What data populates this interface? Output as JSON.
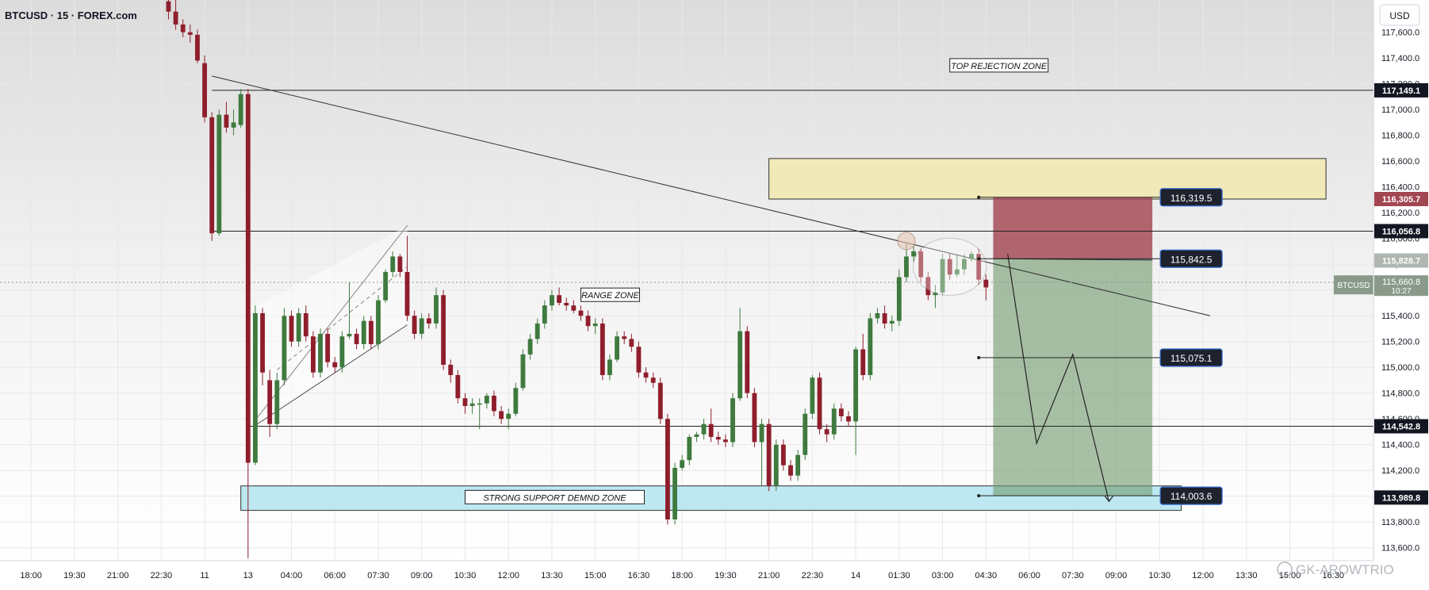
{
  "header": {
    "symbol_title": "BTCUSD · 15 · FOREX.com",
    "currency": "USD"
  },
  "colors": {
    "up": "#3f7a3f",
    "down": "#8f1e2c",
    "grid": "#e8e8e8",
    "loss_zone": "#a24652",
    "profit_zone": "#6f9a6c",
    "yellow_zone": "#f1e9b8",
    "blue_zone": "#bde8f1"
  },
  "annotations": {
    "top_rejection": "TOP REJECTION ZONE",
    "range_zone": "RANGE ZONE",
    "support_zone": "STRONG SUPPORT DEMND ZONE"
  },
  "price_tags": {
    "entry_sl": "116,319.5",
    "entry": "115,842.5",
    "tp1": "115,075.1",
    "tp2": "114,003.6"
  },
  "axis_labels": {
    "yellow_top": "116,305.7",
    "upper_line": "117,149.1",
    "mid_line": "116,056.8",
    "current_right": "115,828.7",
    "btcusd_label": "BTCUSD",
    "btcusd_price": "115,660.8",
    "btcusd_timer": "10:27",
    "lower_line": "114,542.8",
    "bottom_tag": "113,989.8"
  },
  "watermark": "GK-AROWTRIO",
  "chart_data": {
    "type": "candlestick",
    "title": "BTCUSD · 15 · FOREX.com",
    "ylim": [
      113500,
      117850
    ],
    "y_ticks": [
      113600,
      113800,
      114000,
      114200,
      114400,
      114600,
      114800,
      115000,
      115200,
      115400,
      115600,
      115800,
      116000,
      116200,
      116400,
      116600,
      116800,
      117000,
      117200,
      117400,
      117600
    ],
    "y_tick_labels": [
      "113,600.0",
      "113,800.0",
      "114,000.0",
      "114,200.0",
      "114,400.0",
      "114,600.0",
      "114,800.0",
      "115,000.0",
      "115,200.0",
      "115,400.0",
      "115,600.0",
      "115,800.0",
      "116,000.0",
      "116,200.0",
      "116,400.0",
      "116,600.0",
      "116,800.0",
      "117,000.0",
      "117,200.0",
      "117,400.0",
      "117,600.0"
    ],
    "x_index_range": [
      -12,
      119
    ],
    "x_ticks": [
      {
        "i": -11,
        "label": "18:00"
      },
      {
        "i": -5,
        "label": "19:30"
      },
      {
        "i": 1,
        "label": "21:00"
      },
      {
        "i": 7,
        "label": "22:30"
      },
      {
        "i": 13,
        "label": "11"
      },
      {
        "i": 19,
        "label": "13"
      },
      {
        "i": 25,
        "label": "04:00"
      },
      {
        "i": 31,
        "label": "06:00"
      },
      {
        "i": 37,
        "label": "07:30"
      },
      {
        "i": 43,
        "label": "09:00"
      },
      {
        "i": 49,
        "label": "10:30"
      },
      {
        "i": 55,
        "label": "12:00"
      },
      {
        "i": 61,
        "label": "13:30"
      },
      {
        "i": 67,
        "label": "15:00"
      },
      {
        "i": 73,
        "label": "16:30"
      },
      {
        "i": 79,
        "label": "18:00"
      },
      {
        "i": 85,
        "label": "19:30"
      },
      {
        "i": 91,
        "label": "21:00"
      },
      {
        "i": 97,
        "label": "22:30"
      },
      {
        "i": 103,
        "label": "14"
      },
      {
        "i": 109,
        "label": "01:30"
      },
      {
        "i": 115,
        "label": "03:00"
      },
      {
        "i": 121,
        "label": "04:30"
      },
      {
        "i": 127,
        "label": "06:00"
      },
      {
        "i": 133,
        "label": "07:30"
      },
      {
        "i": 139,
        "label": "09:00"
      },
      {
        "i": 145,
        "label": "10:30"
      },
      {
        "i": 151,
        "label": "12:00"
      },
      {
        "i": 157,
        "label": "13:30"
      },
      {
        "i": 163,
        "label": "15:00"
      },
      {
        "i": 169,
        "label": "16:30"
      }
    ],
    "candles": [
      {
        "i": 8,
        "o": 117840,
        "h": 117880,
        "l": 117700,
        "c": 117760
      },
      {
        "i": 9,
        "o": 117760,
        "h": 117860,
        "l": 117620,
        "c": 117660
      },
      {
        "i": 10,
        "o": 117660,
        "h": 117700,
        "l": 117560,
        "c": 117600
      },
      {
        "i": 11,
        "o": 117600,
        "h": 117660,
        "l": 117520,
        "c": 117580
      },
      {
        "i": 12,
        "o": 117580,
        "h": 117620,
        "l": 117360,
        "c": 117380
      },
      {
        "i": 13,
        "o": 117360,
        "h": 117420,
        "l": 116900,
        "c": 116940
      },
      {
        "i": 14,
        "o": 116940,
        "h": 116980,
        "l": 115980,
        "c": 116040
      },
      {
        "i": 15,
        "o": 116040,
        "h": 117000,
        "l": 116020,
        "c": 116960
      },
      {
        "i": 16,
        "o": 116960,
        "h": 117060,
        "l": 116820,
        "c": 116860
      },
      {
        "i": 17,
        "o": 116860,
        "h": 117000,
        "l": 116800,
        "c": 116900
      },
      {
        "i": 18,
        "o": 116880,
        "h": 117160,
        "l": 116860,
        "c": 117120
      },
      {
        "i": 19,
        "o": 117120,
        "h": 117160,
        "l": 113520,
        "c": 114260
      },
      {
        "i": 20,
        "o": 114260,
        "h": 115480,
        "l": 114240,
        "c": 115420
      },
      {
        "i": 21,
        "o": 115420,
        "h": 115460,
        "l": 114860,
        "c": 114960
      },
      {
        "i": 22,
        "o": 114900,
        "h": 114980,
        "l": 114460,
        "c": 114560
      },
      {
        "i": 23,
        "o": 114560,
        "h": 114960,
        "l": 114520,
        "c": 114900
      },
      {
        "i": 24,
        "o": 114900,
        "h": 115460,
        "l": 114860,
        "c": 115400
      },
      {
        "i": 25,
        "o": 115400,
        "h": 115440,
        "l": 115160,
        "c": 115200
      },
      {
        "i": 26,
        "o": 115200,
        "h": 115460,
        "l": 115160,
        "c": 115420
      },
      {
        "i": 27,
        "o": 115420,
        "h": 115480,
        "l": 115200,
        "c": 115240
      },
      {
        "i": 28,
        "o": 115240,
        "h": 115280,
        "l": 114920,
        "c": 114960
      },
      {
        "i": 29,
        "o": 114960,
        "h": 115300,
        "l": 114920,
        "c": 115260
      },
      {
        "i": 30,
        "o": 115260,
        "h": 115300,
        "l": 115000,
        "c": 115040
      },
      {
        "i": 31,
        "o": 115040,
        "h": 115080,
        "l": 114960,
        "c": 115000
      },
      {
        "i": 32,
        "o": 115000,
        "h": 115280,
        "l": 114960,
        "c": 115240
      },
      {
        "i": 33,
        "o": 115240,
        "h": 115660,
        "l": 115220,
        "c": 115260
      },
      {
        "i": 34,
        "o": 115260,
        "h": 115300,
        "l": 115140,
        "c": 115180
      },
      {
        "i": 35,
        "o": 115180,
        "h": 115400,
        "l": 115140,
        "c": 115360
      },
      {
        "i": 36,
        "o": 115360,
        "h": 115400,
        "l": 115140,
        "c": 115180
      },
      {
        "i": 37,
        "o": 115180,
        "h": 115560,
        "l": 115140,
        "c": 115520
      },
      {
        "i": 38,
        "o": 115520,
        "h": 115760,
        "l": 115500,
        "c": 115740
      },
      {
        "i": 39,
        "o": 115740,
        "h": 115900,
        "l": 115700,
        "c": 115860
      },
      {
        "i": 40,
        "o": 115860,
        "h": 115880,
        "l": 115700,
        "c": 115740
      },
      {
        "i": 41,
        "o": 115740,
        "h": 116020,
        "l": 115360,
        "c": 115400
      },
      {
        "i": 42,
        "o": 115400,
        "h": 115440,
        "l": 115220,
        "c": 115260
      },
      {
        "i": 43,
        "o": 115260,
        "h": 115420,
        "l": 115220,
        "c": 115380
      },
      {
        "i": 44,
        "o": 115380,
        "h": 115420,
        "l": 115300,
        "c": 115340
      },
      {
        "i": 45,
        "o": 115340,
        "h": 115620,
        "l": 115300,
        "c": 115560
      },
      {
        "i": 46,
        "o": 115560,
        "h": 115600,
        "l": 114980,
        "c": 115020
      },
      {
        "i": 47,
        "o": 115020,
        "h": 115060,
        "l": 114880,
        "c": 114940
      },
      {
        "i": 48,
        "o": 114940,
        "h": 114980,
        "l": 114720,
        "c": 114760
      },
      {
        "i": 49,
        "o": 114760,
        "h": 114800,
        "l": 114640,
        "c": 114700
      },
      {
        "i": 50,
        "o": 114700,
        "h": 114760,
        "l": 114640,
        "c": 114720
      },
      {
        "i": 51,
        "o": 114720,
        "h": 114760,
        "l": 114520,
        "c": 114720
      },
      {
        "i": 52,
        "o": 114720,
        "h": 114800,
        "l": 114680,
        "c": 114780
      },
      {
        "i": 53,
        "o": 114780,
        "h": 114820,
        "l": 114620,
        "c": 114660
      },
      {
        "i": 54,
        "o": 114660,
        "h": 114700,
        "l": 114560,
        "c": 114600
      },
      {
        "i": 55,
        "o": 114600,
        "h": 114680,
        "l": 114520,
        "c": 114640
      },
      {
        "i": 56,
        "o": 114640,
        "h": 114880,
        "l": 114620,
        "c": 114840
      },
      {
        "i": 57,
        "o": 114840,
        "h": 115140,
        "l": 114820,
        "c": 115100
      },
      {
        "i": 58,
        "o": 115100,
        "h": 115260,
        "l": 115060,
        "c": 115220
      },
      {
        "i": 59,
        "o": 115220,
        "h": 115380,
        "l": 115180,
        "c": 115340
      },
      {
        "i": 60,
        "o": 115340,
        "h": 115520,
        "l": 115300,
        "c": 115480
      },
      {
        "i": 61,
        "o": 115480,
        "h": 115600,
        "l": 115440,
        "c": 115560
      },
      {
        "i": 62,
        "o": 115560,
        "h": 115620,
        "l": 115480,
        "c": 115500
      },
      {
        "i": 63,
        "o": 115500,
        "h": 115540,
        "l": 115440,
        "c": 115480
      },
      {
        "i": 64,
        "o": 115480,
        "h": 115520,
        "l": 115420,
        "c": 115440
      },
      {
        "i": 65,
        "o": 115440,
        "h": 115480,
        "l": 115360,
        "c": 115400
      },
      {
        "i": 66,
        "o": 115400,
        "h": 115440,
        "l": 115280,
        "c": 115320
      },
      {
        "i": 67,
        "o": 115320,
        "h": 115380,
        "l": 115260,
        "c": 115340
      },
      {
        "i": 68,
        "o": 115340,
        "h": 115380,
        "l": 114900,
        "c": 114940
      },
      {
        "i": 69,
        "o": 114940,
        "h": 115100,
        "l": 114900,
        "c": 115060
      },
      {
        "i": 70,
        "o": 115060,
        "h": 115280,
        "l": 115040,
        "c": 115240
      },
      {
        "i": 71,
        "o": 115240,
        "h": 115280,
        "l": 115180,
        "c": 115220
      },
      {
        "i": 72,
        "o": 115220,
        "h": 115260,
        "l": 115120,
        "c": 115160
      },
      {
        "i": 73,
        "o": 115160,
        "h": 115200,
        "l": 114920,
        "c": 114960
      },
      {
        "i": 74,
        "o": 114960,
        "h": 115000,
        "l": 114880,
        "c": 114920
      },
      {
        "i": 75,
        "o": 114920,
        "h": 114960,
        "l": 114840,
        "c": 114880
      },
      {
        "i": 76,
        "o": 114880,
        "h": 114920,
        "l": 114560,
        "c": 114600
      },
      {
        "i": 77,
        "o": 114600,
        "h": 114640,
        "l": 113780,
        "c": 113820
      },
      {
        "i": 78,
        "o": 113820,
        "h": 114260,
        "l": 113780,
        "c": 114220
      },
      {
        "i": 79,
        "o": 114220,
        "h": 114320,
        "l": 114200,
        "c": 114280
      },
      {
        "i": 80,
        "o": 114280,
        "h": 114480,
        "l": 114240,
        "c": 114460
      },
      {
        "i": 81,
        "o": 114460,
        "h": 114500,
        "l": 114420,
        "c": 114480
      },
      {
        "i": 82,
        "o": 114480,
        "h": 114600,
        "l": 114440,
        "c": 114560
      },
      {
        "i": 83,
        "o": 114560,
        "h": 114680,
        "l": 114420,
        "c": 114460
      },
      {
        "i": 84,
        "o": 114460,
        "h": 114500,
        "l": 114400,
        "c": 114440
      },
      {
        "i": 85,
        "o": 114440,
        "h": 114480,
        "l": 114380,
        "c": 114420
      },
      {
        "i": 86,
        "o": 114420,
        "h": 114800,
        "l": 114380,
        "c": 114760
      },
      {
        "i": 87,
        "o": 114760,
        "h": 115460,
        "l": 114740,
        "c": 115280
      },
      {
        "i": 88,
        "o": 115280,
        "h": 115320,
        "l": 114760,
        "c": 114800
      },
      {
        "i": 89,
        "o": 114800,
        "h": 114840,
        "l": 114380,
        "c": 114420
      },
      {
        "i": 90,
        "o": 114420,
        "h": 114600,
        "l": 114080,
        "c": 114560
      },
      {
        "i": 91,
        "o": 114560,
        "h": 114600,
        "l": 114040,
        "c": 114080
      },
      {
        "i": 92,
        "o": 114080,
        "h": 114440,
        "l": 114040,
        "c": 114400
      },
      {
        "i": 93,
        "o": 114400,
        "h": 114440,
        "l": 114200,
        "c": 114240
      },
      {
        "i": 94,
        "o": 114240,
        "h": 114280,
        "l": 114120,
        "c": 114160
      },
      {
        "i": 95,
        "o": 114160,
        "h": 114360,
        "l": 114120,
        "c": 114320
      },
      {
        "i": 96,
        "o": 114320,
        "h": 114680,
        "l": 114280,
        "c": 114640
      },
      {
        "i": 97,
        "o": 114640,
        "h": 114940,
        "l": 114600,
        "c": 114920
      },
      {
        "i": 98,
        "o": 114920,
        "h": 114960,
        "l": 114480,
        "c": 114520
      },
      {
        "i": 99,
        "o": 114520,
        "h": 114560,
        "l": 114420,
        "c": 114480
      },
      {
        "i": 100,
        "o": 114480,
        "h": 114720,
        "l": 114440,
        "c": 114680
      },
      {
        "i": 101,
        "o": 114680,
        "h": 114720,
        "l": 114580,
        "c": 114620
      },
      {
        "i": 102,
        "o": 114620,
        "h": 114660,
        "l": 114540,
        "c": 114580
      },
      {
        "i": 103,
        "o": 114580,
        "h": 115160,
        "l": 114320,
        "c": 115140
      },
      {
        "i": 104,
        "o": 115140,
        "h": 115260,
        "l": 114900,
        "c": 114940
      },
      {
        "i": 105,
        "o": 114940,
        "h": 115420,
        "l": 114900,
        "c": 115380
      },
      {
        "i": 106,
        "o": 115380,
        "h": 115460,
        "l": 115340,
        "c": 115420
      },
      {
        "i": 107,
        "o": 115420,
        "h": 115480,
        "l": 115300,
        "c": 115340
      },
      {
        "i": 108,
        "o": 115340,
        "h": 115400,
        "l": 115280,
        "c": 115360
      },
      {
        "i": 109,
        "o": 115360,
        "h": 115760,
        "l": 115320,
        "c": 115700
      },
      {
        "i": 110,
        "o": 115700,
        "h": 115960,
        "l": 115660,
        "c": 115860
      },
      {
        "i": 111,
        "o": 115860,
        "h": 115940,
        "l": 115820,
        "c": 115900
      },
      {
        "i": 112,
        "o": 115900,
        "h": 115920,
        "l": 115660,
        "c": 115700
      },
      {
        "i": 113,
        "o": 115700,
        "h": 115740,
        "l": 115520,
        "c": 115560
      },
      {
        "i": 114,
        "o": 115560,
        "h": 115640,
        "l": 115460,
        "c": 115580
      },
      {
        "i": 115,
        "o": 115580,
        "h": 115880,
        "l": 115560,
        "c": 115840
      },
      {
        "i": 116,
        "o": 115840,
        "h": 115880,
        "l": 115680,
        "c": 115720
      },
      {
        "i": 117,
        "o": 115720,
        "h": 115880,
        "l": 115700,
        "c": 115760
      },
      {
        "i": 118,
        "o": 115760,
        "h": 115880,
        "l": 115720,
        "c": 115840
      },
      {
        "i": 119,
        "o": 115840,
        "h": 115900,
        "l": 115820,
        "c": 115880
      },
      {
        "i": 120,
        "o": 115880,
        "h": 115920,
        "l": 115640,
        "c": 115680
      },
      {
        "i": 121,
        "o": 115680,
        "h": 115720,
        "l": 115520,
        "c": 115620
      }
    ],
    "levels": [
      117149.1,
      116056.8,
      114542.8
    ],
    "zones": {
      "top_rejection": {
        "from_i": 91,
        "to_i": 168,
        "low": 116305.7,
        "high": 116620
      },
      "support_demand": {
        "from_i": 18,
        "to_i": 148,
        "low": 113890,
        "high": 114080
      }
    },
    "position": {
      "from_i": 122,
      "to_i": 144,
      "stop": 116319.5,
      "entry": 115842.5,
      "tp1": 115075.1,
      "tp2": 114003.6
    }
  }
}
